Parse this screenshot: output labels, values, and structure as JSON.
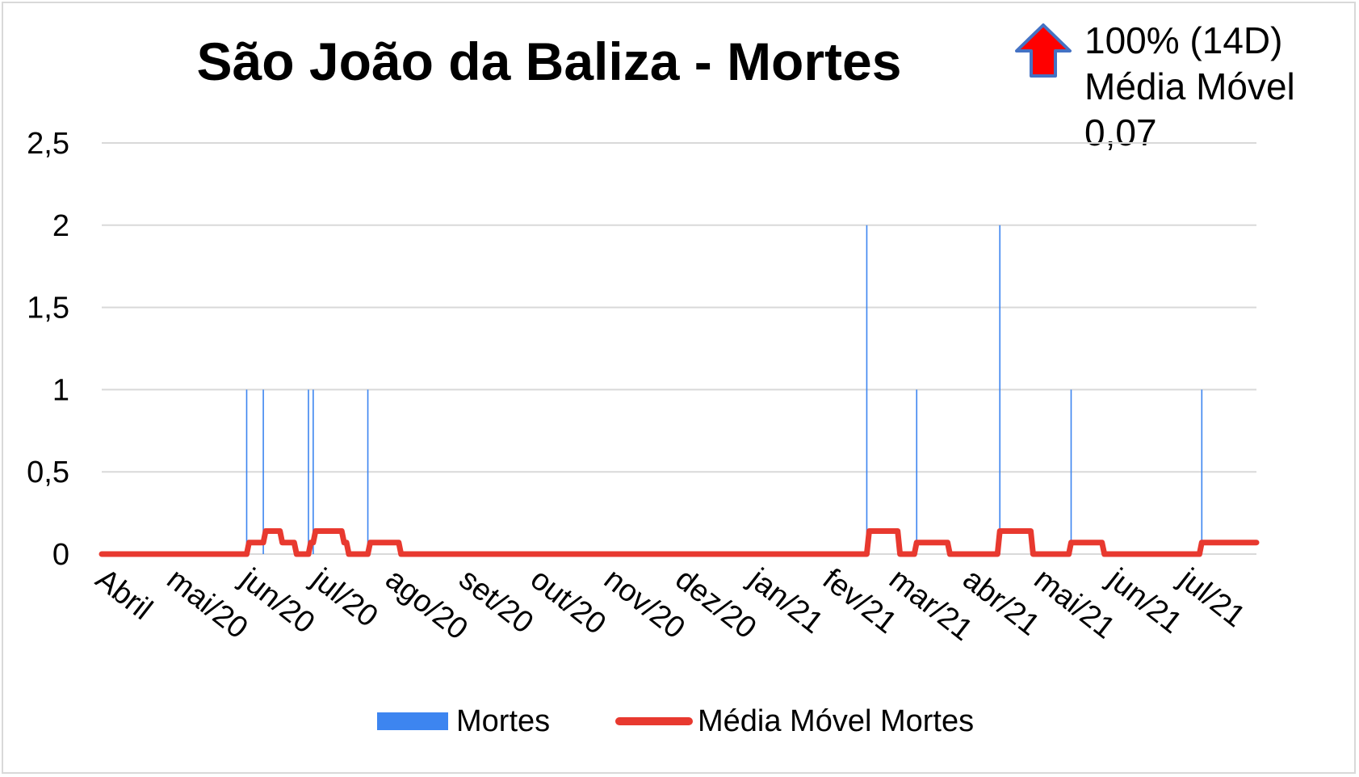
{
  "chart_data": {
    "type": "bar",
    "title": "São João da Baliza - Mortes",
    "xlabel": "",
    "ylabel": "",
    "ylim": [
      0,
      2.5
    ],
    "y_ticks": [
      "0",
      "0,5",
      "1",
      "1,5",
      "2",
      "2,5"
    ],
    "y_tick_values": [
      0,
      0.5,
      1,
      1.5,
      2,
      2.5
    ],
    "x_tick_labels": [
      "Abril",
      "mai/20",
      "jun/20",
      "jul/20",
      "ago/20",
      "set/20",
      "out/20",
      "nov/20",
      "dez/20",
      "jan/21",
      "fev/21",
      "mar/21",
      "abr/21",
      "mai/21",
      "jun/21",
      "jul/21"
    ],
    "x_tick_dates": [
      "2020-04-01",
      "2020-05-01",
      "2020-06-01",
      "2020-07-01",
      "2020-08-01",
      "2020-09-01",
      "2020-10-01",
      "2020-11-01",
      "2020-12-01",
      "2021-01-01",
      "2021-02-01",
      "2021-03-01",
      "2021-04-01",
      "2021-05-01",
      "2021-06-01",
      "2021-07-01"
    ],
    "x_range": [
      "2020-04-01",
      "2021-07-31"
    ],
    "grid": true,
    "legend_position": "bottom",
    "series": [
      {
        "name": "Mortes",
        "kind": "bar",
        "color": "#3d85f0",
        "points": [
          {
            "date": "2020-06-01",
            "value": 1
          },
          {
            "date": "2020-06-08",
            "value": 1
          },
          {
            "date": "2020-06-27",
            "value": 1
          },
          {
            "date": "2020-06-29",
            "value": 1
          },
          {
            "date": "2020-07-22",
            "value": 1
          },
          {
            "date": "2021-02-17",
            "value": 2
          },
          {
            "date": "2021-03-10",
            "value": 1
          },
          {
            "date": "2021-04-14",
            "value": 2
          },
          {
            "date": "2021-05-14",
            "value": 1
          },
          {
            "date": "2021-07-08",
            "value": 1
          }
        ]
      },
      {
        "name": "Média Móvel Mortes",
        "kind": "line",
        "color": "#e8392f",
        "points": [
          {
            "date": "2020-04-01",
            "value": 0
          },
          {
            "date": "2020-06-01",
            "value": 0
          },
          {
            "date": "2020-06-02",
            "value": 0.07
          },
          {
            "date": "2020-06-08",
            "value": 0.07
          },
          {
            "date": "2020-06-09",
            "value": 0.14
          },
          {
            "date": "2020-06-15",
            "value": 0.14
          },
          {
            "date": "2020-06-16",
            "value": 0.07
          },
          {
            "date": "2020-06-21",
            "value": 0.07
          },
          {
            "date": "2020-06-22",
            "value": 0
          },
          {
            "date": "2020-06-27",
            "value": 0
          },
          {
            "date": "2020-06-28",
            "value": 0.07
          },
          {
            "date": "2020-06-29",
            "value": 0.07
          },
          {
            "date": "2020-06-30",
            "value": 0.14
          },
          {
            "date": "2020-07-11",
            "value": 0.14
          },
          {
            "date": "2020-07-12",
            "value": 0.07
          },
          {
            "date": "2020-07-13",
            "value": 0.07
          },
          {
            "date": "2020-07-14",
            "value": 0
          },
          {
            "date": "2020-07-22",
            "value": 0
          },
          {
            "date": "2020-07-23",
            "value": 0.07
          },
          {
            "date": "2020-08-04",
            "value": 0.07
          },
          {
            "date": "2020-08-05",
            "value": 0
          },
          {
            "date": "2021-02-17",
            "value": 0
          },
          {
            "date": "2021-02-18",
            "value": 0.14
          },
          {
            "date": "2021-03-02",
            "value": 0.14
          },
          {
            "date": "2021-03-03",
            "value": 0
          },
          {
            "date": "2021-03-09",
            "value": 0
          },
          {
            "date": "2021-03-10",
            "value": 0.07
          },
          {
            "date": "2021-03-23",
            "value": 0.07
          },
          {
            "date": "2021-03-24",
            "value": 0
          },
          {
            "date": "2021-04-13",
            "value": 0
          },
          {
            "date": "2021-04-14",
            "value": 0.14
          },
          {
            "date": "2021-04-27",
            "value": 0.14
          },
          {
            "date": "2021-04-28",
            "value": 0
          },
          {
            "date": "2021-05-13",
            "value": 0
          },
          {
            "date": "2021-05-14",
            "value": 0.07
          },
          {
            "date": "2021-05-27",
            "value": 0.07
          },
          {
            "date": "2021-05-28",
            "value": 0
          },
          {
            "date": "2021-07-07",
            "value": 0
          },
          {
            "date": "2021-07-08",
            "value": 0.07
          },
          {
            "date": "2021-07-31",
            "value": 0.07
          }
        ]
      }
    ]
  },
  "annotation": {
    "icon": "up-arrow-icon",
    "arrow_color": "#ff0000",
    "arrow_outline": "#4472c4",
    "line1": "100% (14D)",
    "line2": "Média Móvel",
    "line3": "0,07"
  },
  "legend": {
    "bar_label": "Mortes",
    "line_label": "Média Móvel Mortes"
  }
}
